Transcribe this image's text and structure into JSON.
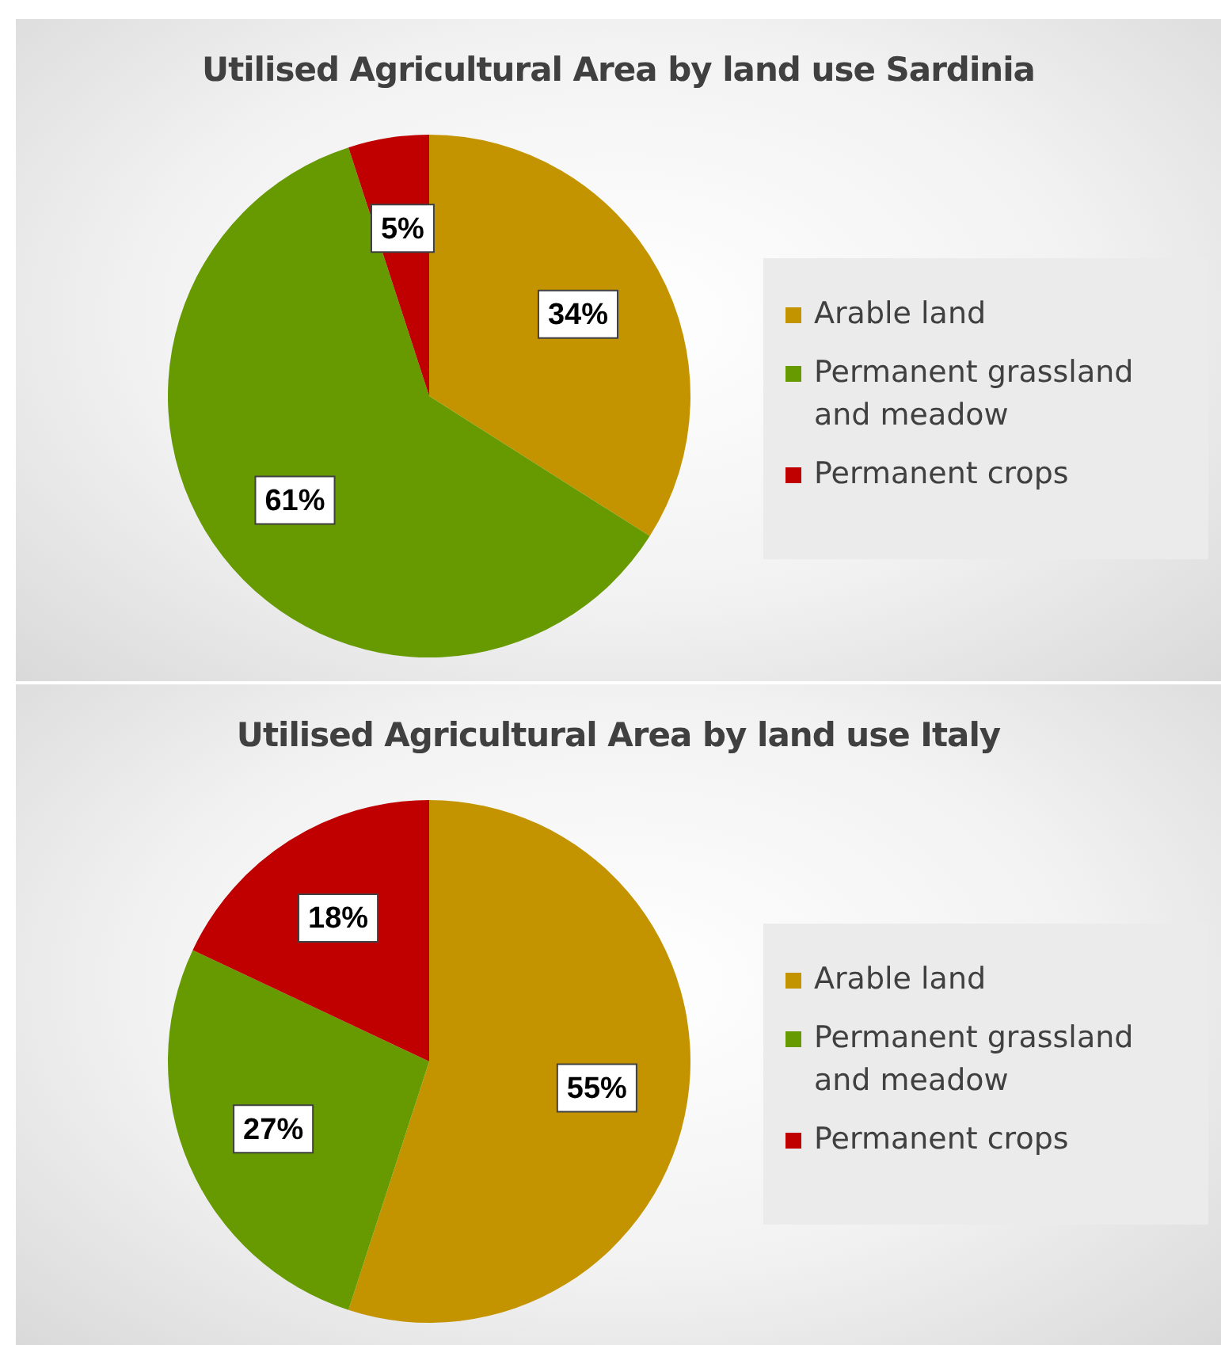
{
  "chart_data": [
    {
      "type": "pie",
      "title": "Utilised Agricultural Area by land use Sardinia",
      "categories": [
        "Arable land",
        "Permanent grassland and meadow",
        "Permanent crops"
      ],
      "values": [
        34,
        61,
        5
      ],
      "value_labels": [
        "34%",
        "61%",
        "5%"
      ],
      "colors": [
        "#c49400",
        "#679a00",
        "#c00000"
      ],
      "legend": "right"
    },
    {
      "type": "pie",
      "title": "Utilised Agricultural Area by land use Italy",
      "categories": [
        "Arable land",
        "Permanent grassland and meadow",
        "Permanent crops"
      ],
      "values": [
        55,
        27,
        18
      ],
      "value_labels": [
        "55%",
        "27%",
        "18%"
      ],
      "colors": [
        "#c49400",
        "#679a00",
        "#c00000"
      ],
      "legend": "right"
    }
  ]
}
